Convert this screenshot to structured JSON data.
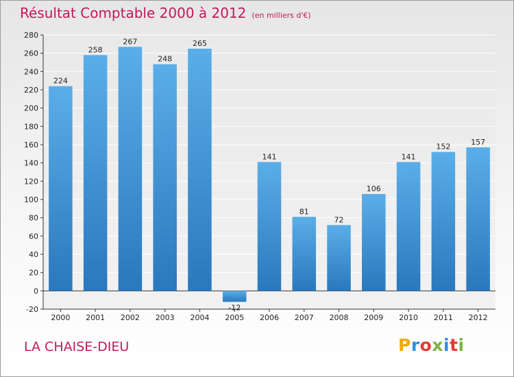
{
  "header": {
    "title": "Résultat Comptable 2000 à 2012",
    "subtitle": "(en milliers d'€)"
  },
  "footer": {
    "place": "LA CHAISE-DIEU",
    "logo_letters": [
      "P",
      "r",
      "o",
      "x",
      "i",
      "t",
      "i"
    ],
    "logo_colors": [
      "#f2a900",
      "#2e8ede",
      "#e53935",
      "#7cb342",
      "#2e8ede",
      "#e53935",
      "#7cb342"
    ]
  },
  "colors": {
    "bar_top": "#5aaee8",
    "bar_bottom": "#2a78bd",
    "grid": "#ffffff",
    "axis": "#333333",
    "title": "#c2185b"
  },
  "chart_data": {
    "type": "bar",
    "categories": [
      "2000",
      "2001",
      "2002",
      "2003",
      "2004",
      "2005",
      "2006",
      "2007",
      "2008",
      "2009",
      "2010",
      "2011",
      "2012"
    ],
    "values": [
      224,
      258,
      267,
      248,
      265,
      -12,
      141,
      81,
      72,
      106,
      141,
      152,
      157
    ],
    "title": "Résultat Comptable 2000 à 2012",
    "subtitle": "(en milliers d'€)",
    "xlabel": "",
    "ylabel": "",
    "ylim": [
      -20,
      280
    ],
    "yticks": [
      -20,
      0,
      20,
      40,
      60,
      80,
      100,
      120,
      140,
      160,
      180,
      200,
      220,
      240,
      260,
      280
    ],
    "grid": true,
    "legend": "none"
  }
}
